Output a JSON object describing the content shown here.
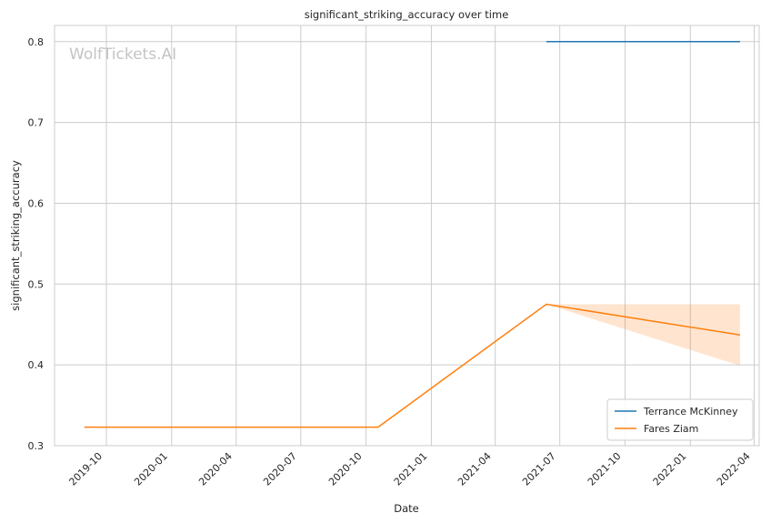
{
  "chart_data": {
    "type": "line",
    "title": "significant_striking_accuracy over time",
    "xlabel": "Date",
    "ylabel": "significant_striking_accuracy",
    "watermark": "WolfTickets.AI",
    "grid": true,
    "legend_position": "bottom-right",
    "xlim": [
      "2019-07-20",
      "2022-04-08"
    ],
    "ylim": [
      0.3,
      0.82
    ],
    "x_ticks": [
      "2019-10-01",
      "2020-01-01",
      "2020-04-01",
      "2020-07-01",
      "2020-10-01",
      "2021-01-01",
      "2021-04-01",
      "2021-07-01",
      "2021-10-01",
      "2022-01-01",
      "2022-04-01"
    ],
    "x_tick_labels": [
      "2019-10",
      "2020-01",
      "2020-04",
      "2020-07",
      "2020-10",
      "2021-01",
      "2021-04",
      "2021-07",
      "2021-10",
      "2022-01",
      "2022-04"
    ],
    "y_ticks": [
      0.3,
      0.4,
      0.5,
      0.6,
      0.7,
      0.8
    ],
    "y_tick_labels": [
      "0.3",
      "0.4",
      "0.5",
      "0.6",
      "0.7",
      "0.8"
    ],
    "series": [
      {
        "name": "Terrance McKinney",
        "color": "#1f77b4",
        "x": [
          "2021-06-12",
          "2022-03-12"
        ],
        "y": [
          0.8,
          0.8
        ]
      },
      {
        "name": "Fares Ziam",
        "color": "#ff7f0e",
        "x": [
          "2019-08-31",
          "2020-10-18",
          "2021-06-12",
          "2022-03-12"
        ],
        "y": [
          0.323,
          0.323,
          0.475,
          0.437
        ],
        "band": {
          "x": [
            "2021-06-12",
            "2022-03-12"
          ],
          "lower": [
            0.475,
            0.399
          ],
          "upper": [
            0.475,
            0.475
          ]
        }
      }
    ]
  }
}
